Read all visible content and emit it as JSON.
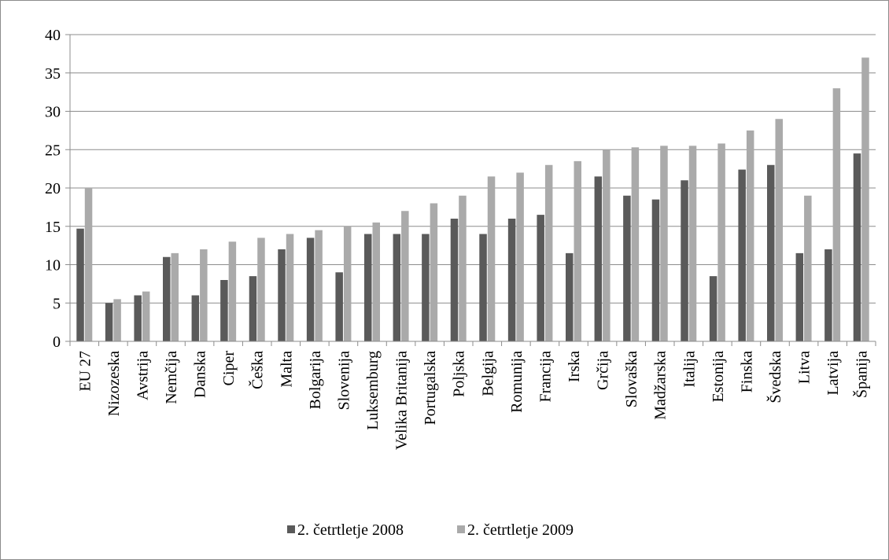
{
  "chart_data": {
    "type": "bar",
    "title": "",
    "xlabel": "",
    "ylabel": "",
    "ylim": [
      0,
      40
    ],
    "yticks": [
      0,
      5,
      10,
      15,
      20,
      25,
      30,
      35,
      40
    ],
    "grid": "horizontal",
    "legend_position": "bottom",
    "categories": [
      "EU 27",
      "Nizozeska",
      "Avstrija",
      "Nemčija",
      "Danska",
      "Ciper",
      "Češka",
      "Malta",
      "Bolgarija",
      "Slovenija",
      "Luksemburg",
      "Velika Britanija",
      "Portugalska",
      "Poljska",
      "Belgija",
      "Romunija",
      "Francija",
      "Irska",
      "Grčija",
      "Slovaška",
      "Madžarska",
      "Italija",
      "Estonija",
      "Finska",
      "Švedska",
      "Litva",
      "Latvija",
      "Španija"
    ],
    "series": [
      {
        "name": "2. četrtletje 2008",
        "color": "#5a5a5a",
        "values": [
          14.7,
          5,
          6,
          11,
          6,
          8,
          8.5,
          12,
          13.5,
          9,
          14,
          14,
          14,
          16,
          14,
          16,
          16.5,
          11.5,
          21.5,
          19,
          18.5,
          21,
          8.5,
          22.4,
          23,
          11.5,
          12,
          24.5
        ]
      },
      {
        "name": "2. četrtletje 2009",
        "color": "#aaaaaa",
        "values": [
          20,
          5.5,
          6.5,
          11.5,
          12,
          13,
          13.5,
          14,
          14.5,
          15,
          15.5,
          17,
          18,
          19,
          21.5,
          22,
          23,
          23.5,
          25,
          25.3,
          25.5,
          25.5,
          25.8,
          27.5,
          29,
          19,
          33,
          37
        ]
      }
    ]
  }
}
